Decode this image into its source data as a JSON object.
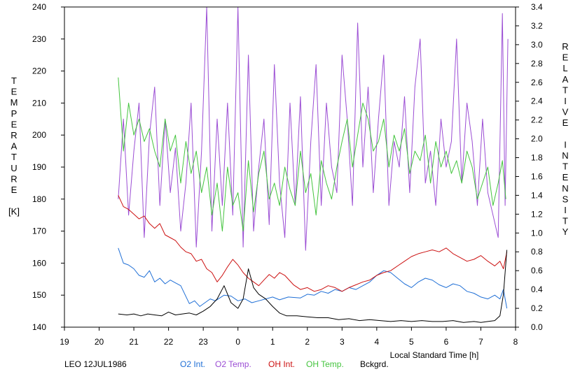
{
  "chart_data": {
    "type": "line",
    "date_label": "LEO 12JUL1986",
    "xlabel": "Local Standard Time [h]",
    "ylabel_left_letters": [
      "T",
      "E",
      "M",
      "P",
      "E",
      "R",
      "A",
      "T",
      "U",
      "R",
      "E",
      "",
      "[K]"
    ],
    "ylabel_right_letters": [
      "R",
      "E",
      "L",
      "A",
      "T",
      "I",
      "V",
      "E",
      "",
      "I",
      "N",
      "T",
      "E",
      "N",
      "S",
      "I",
      "T",
      "Y"
    ],
    "xlim": [
      19,
      32
    ],
    "x_ticks": [
      19,
      20,
      21,
      22,
      23,
      24,
      25,
      26,
      27,
      28,
      29,
      30,
      31,
      32
    ],
    "x_tick_labels": [
      "19",
      "20",
      "21",
      "22",
      "23",
      "0",
      "1",
      "2",
      "3",
      "4",
      "5",
      "6",
      "7",
      "8"
    ],
    "ylim_left": [
      140,
      240
    ],
    "y_ticks_left": [
      140,
      150,
      160,
      170,
      180,
      190,
      200,
      210,
      220,
      230,
      240
    ],
    "ylim_right": [
      0.0,
      3.4
    ],
    "y_ticks_right": [
      "0.0",
      "0.2",
      "0.4",
      "0.6",
      "0.8",
      "1.0",
      "1.2",
      "1.4",
      "1.6",
      "1.8",
      "2.0",
      "2.2",
      "2.4",
      "2.6",
      "2.8",
      "3.0",
      "3.2",
      "3.4"
    ],
    "grid": false,
    "legend_position": "bottom",
    "series": [
      {
        "name": "O2 Int.",
        "axis": "right",
        "color": "#1f6fd6",
        "x": [
          20.55,
          20.7,
          20.85,
          21.0,
          21.15,
          21.3,
          21.45,
          21.6,
          21.75,
          21.9,
          22.05,
          22.2,
          22.35,
          22.6,
          22.75,
          22.9,
          23.05,
          23.2,
          23.35,
          23.6,
          23.8,
          24.0,
          24.2,
          24.4,
          24.6,
          24.8,
          25.0,
          25.2,
          25.45,
          25.8,
          26.0,
          26.2,
          26.4,
          26.6,
          26.8,
          27.0,
          27.2,
          27.4,
          27.6,
          27.8,
          28.0,
          28.2,
          28.4,
          28.6,
          28.8,
          29.0,
          29.2,
          29.4,
          29.6,
          29.8,
          30.0,
          30.2,
          30.4,
          30.6,
          30.8,
          31.0,
          31.2,
          31.4,
          31.55,
          31.65,
          31.75
        ],
        "values": [
          0.84,
          0.68,
          0.66,
          0.62,
          0.55,
          0.53,
          0.6,
          0.48,
          0.52,
          0.46,
          0.5,
          0.47,
          0.44,
          0.25,
          0.28,
          0.22,
          0.26,
          0.3,
          0.28,
          0.34,
          0.33,
          0.28,
          0.3,
          0.26,
          0.28,
          0.3,
          0.32,
          0.29,
          0.32,
          0.31,
          0.35,
          0.34,
          0.38,
          0.36,
          0.4,
          0.38,
          0.42,
          0.4,
          0.44,
          0.48,
          0.55,
          0.6,
          0.58,
          0.52,
          0.46,
          0.42,
          0.48,
          0.52,
          0.5,
          0.45,
          0.42,
          0.46,
          0.44,
          0.38,
          0.36,
          0.32,
          0.3,
          0.34,
          0.3,
          0.4,
          0.2
        ]
      },
      {
        "name": "O2 Temp.",
        "axis": "left",
        "color": "#9b4dd4",
        "x": [
          20.55,
          20.7,
          20.85,
          21.0,
          21.15,
          21.3,
          21.45,
          21.6,
          21.75,
          21.9,
          22.05,
          22.2,
          22.35,
          22.5,
          22.65,
          22.8,
          22.95,
          23.1,
          23.25,
          23.4,
          23.55,
          23.7,
          23.85,
          24.0,
          24.15,
          24.3,
          24.45,
          24.6,
          24.75,
          24.9,
          25.05,
          25.2,
          25.35,
          25.5,
          25.65,
          25.8,
          25.95,
          26.1,
          26.25,
          26.4,
          26.55,
          26.7,
          26.85,
          27.0,
          27.15,
          27.3,
          27.45,
          27.6,
          27.75,
          27.9,
          28.05,
          28.2,
          28.35,
          28.5,
          28.65,
          28.8,
          28.95,
          29.1,
          29.25,
          29.4,
          29.55,
          29.7,
          29.85,
          30.0,
          30.15,
          30.3,
          30.45,
          30.6,
          30.75,
          30.9,
          31.05,
          31.2,
          31.35,
          31.5,
          31.62,
          31.7,
          31.78
        ],
        "values": [
          180,
          205,
          175,
          195,
          210,
          168,
          200,
          215,
          178,
          205,
          182,
          196,
          170,
          185,
          210,
          165,
          195,
          240,
          170,
          205,
          178,
          210,
          175,
          240,
          165,
          225,
          170,
          190,
          205,
          172,
          222,
          185,
          168,
          210,
          178,
          212,
          164,
          198,
          222,
          178,
          210,
          190,
          182,
          225,
          205,
          178,
          235,
          190,
          215,
          182,
          205,
          225,
          178,
          198,
          190,
          212,
          182,
          215,
          230,
          185,
          195,
          178,
          205,
          190,
          198,
          230,
          185,
          210,
          198,
          178,
          205,
          182,
          175,
          168,
          238,
          178,
          230
        ]
      },
      {
        "name": "OH Int.",
        "axis": "right",
        "color": "#cc1111",
        "x": [
          20.55,
          20.7,
          20.85,
          21.0,
          21.15,
          21.3,
          21.45,
          21.6,
          21.75,
          21.9,
          22.05,
          22.2,
          22.35,
          22.5,
          22.65,
          22.8,
          22.95,
          23.1,
          23.25,
          23.4,
          23.55,
          23.7,
          23.85,
          24.0,
          24.15,
          24.3,
          24.45,
          24.6,
          24.75,
          24.9,
          25.05,
          25.2,
          25.35,
          25.6,
          25.8,
          26.0,
          26.2,
          26.4,
          26.6,
          26.8,
          27.0,
          27.2,
          27.4,
          27.6,
          27.8,
          28.0,
          28.2,
          28.4,
          28.6,
          28.8,
          29.0,
          29.2,
          29.4,
          29.6,
          29.8,
          30.0,
          30.2,
          30.4,
          30.6,
          30.8,
          31.0,
          31.2,
          31.4,
          31.55,
          31.65,
          31.75
        ],
        "values": [
          1.4,
          1.28,
          1.25,
          1.2,
          1.15,
          1.18,
          1.1,
          1.05,
          1.1,
          0.98,
          0.95,
          0.92,
          0.85,
          0.8,
          0.78,
          0.7,
          0.72,
          0.62,
          0.58,
          0.48,
          0.55,
          0.64,
          0.72,
          0.66,
          0.58,
          0.52,
          0.48,
          0.44,
          0.5,
          0.56,
          0.52,
          0.58,
          0.55,
          0.45,
          0.4,
          0.42,
          0.38,
          0.4,
          0.44,
          0.42,
          0.38,
          0.42,
          0.45,
          0.48,
          0.5,
          0.55,
          0.58,
          0.6,
          0.65,
          0.7,
          0.75,
          0.78,
          0.8,
          0.82,
          0.8,
          0.84,
          0.78,
          0.74,
          0.7,
          0.72,
          0.76,
          0.7,
          0.65,
          0.7,
          0.62,
          0.8
        ]
      },
      {
        "name": "OH Temp.",
        "axis": "left",
        "color": "#44c43e",
        "x": [
          20.55,
          20.7,
          20.85,
          21.0,
          21.15,
          21.3,
          21.45,
          21.6,
          21.75,
          21.9,
          22.05,
          22.2,
          22.35,
          22.5,
          22.65,
          22.8,
          22.95,
          23.1,
          23.25,
          23.4,
          23.55,
          23.7,
          23.85,
          24.0,
          24.15,
          24.3,
          24.45,
          24.6,
          24.75,
          24.9,
          25.05,
          25.2,
          25.35,
          25.5,
          25.65,
          25.8,
          25.95,
          26.1,
          26.25,
          26.4,
          26.55,
          26.7,
          26.85,
          27.0,
          27.15,
          27.3,
          27.45,
          27.6,
          27.75,
          27.9,
          28.05,
          28.2,
          28.35,
          28.5,
          28.65,
          28.8,
          28.95,
          29.1,
          29.25,
          29.4,
          29.55,
          29.7,
          29.85,
          30.0,
          30.15,
          30.3,
          30.45,
          30.6,
          30.75,
          30.9,
          31.05,
          31.2,
          31.35,
          31.5,
          31.62,
          31.72
        ],
        "values": [
          218,
          195,
          210,
          200,
          205,
          198,
          202,
          195,
          190,
          205,
          195,
          200,
          185,
          198,
          188,
          195,
          182,
          190,
          175,
          185,
          170,
          190,
          178,
          182,
          170,
          192,
          176,
          188,
          195,
          180,
          185,
          178,
          190,
          183,
          178,
          195,
          182,
          188,
          175,
          192,
          185,
          180,
          190,
          198,
          205,
          190,
          200,
          210,
          205,
          195,
          198,
          205,
          190,
          200,
          195,
          202,
          188,
          195,
          192,
          200,
          185,
          198,
          190,
          195,
          188,
          192,
          185,
          195,
          190,
          180,
          185,
          190,
          178,
          185,
          192,
          180
        ]
      },
      {
        "name": "Bckgrd.",
        "axis": "right",
        "color": "#000000",
        "x": [
          20.55,
          20.8,
          21.0,
          21.2,
          21.4,
          21.6,
          21.8,
          22.0,
          22.2,
          22.4,
          22.6,
          22.8,
          23.0,
          23.2,
          23.4,
          23.6,
          23.8,
          24.0,
          24.15,
          24.3,
          24.45,
          24.6,
          24.8,
          25.0,
          25.2,
          25.4,
          25.7,
          26.0,
          26.3,
          26.6,
          26.9,
          27.2,
          27.5,
          27.8,
          28.1,
          28.4,
          28.7,
          29.0,
          29.3,
          29.6,
          29.9,
          30.2,
          30.5,
          30.8,
          31.0,
          31.2,
          31.4,
          31.55,
          31.65,
          31.75
        ],
        "values": [
          0.14,
          0.13,
          0.14,
          0.12,
          0.14,
          0.13,
          0.12,
          0.16,
          0.13,
          0.14,
          0.15,
          0.13,
          0.17,
          0.22,
          0.3,
          0.44,
          0.26,
          0.2,
          0.3,
          0.62,
          0.42,
          0.35,
          0.3,
          0.22,
          0.15,
          0.12,
          0.12,
          0.11,
          0.1,
          0.1,
          0.08,
          0.09,
          0.07,
          0.08,
          0.07,
          0.06,
          0.07,
          0.06,
          0.07,
          0.06,
          0.06,
          0.07,
          0.05,
          0.06,
          0.05,
          0.06,
          0.07,
          0.12,
          0.35,
          0.82
        ]
      }
    ]
  }
}
